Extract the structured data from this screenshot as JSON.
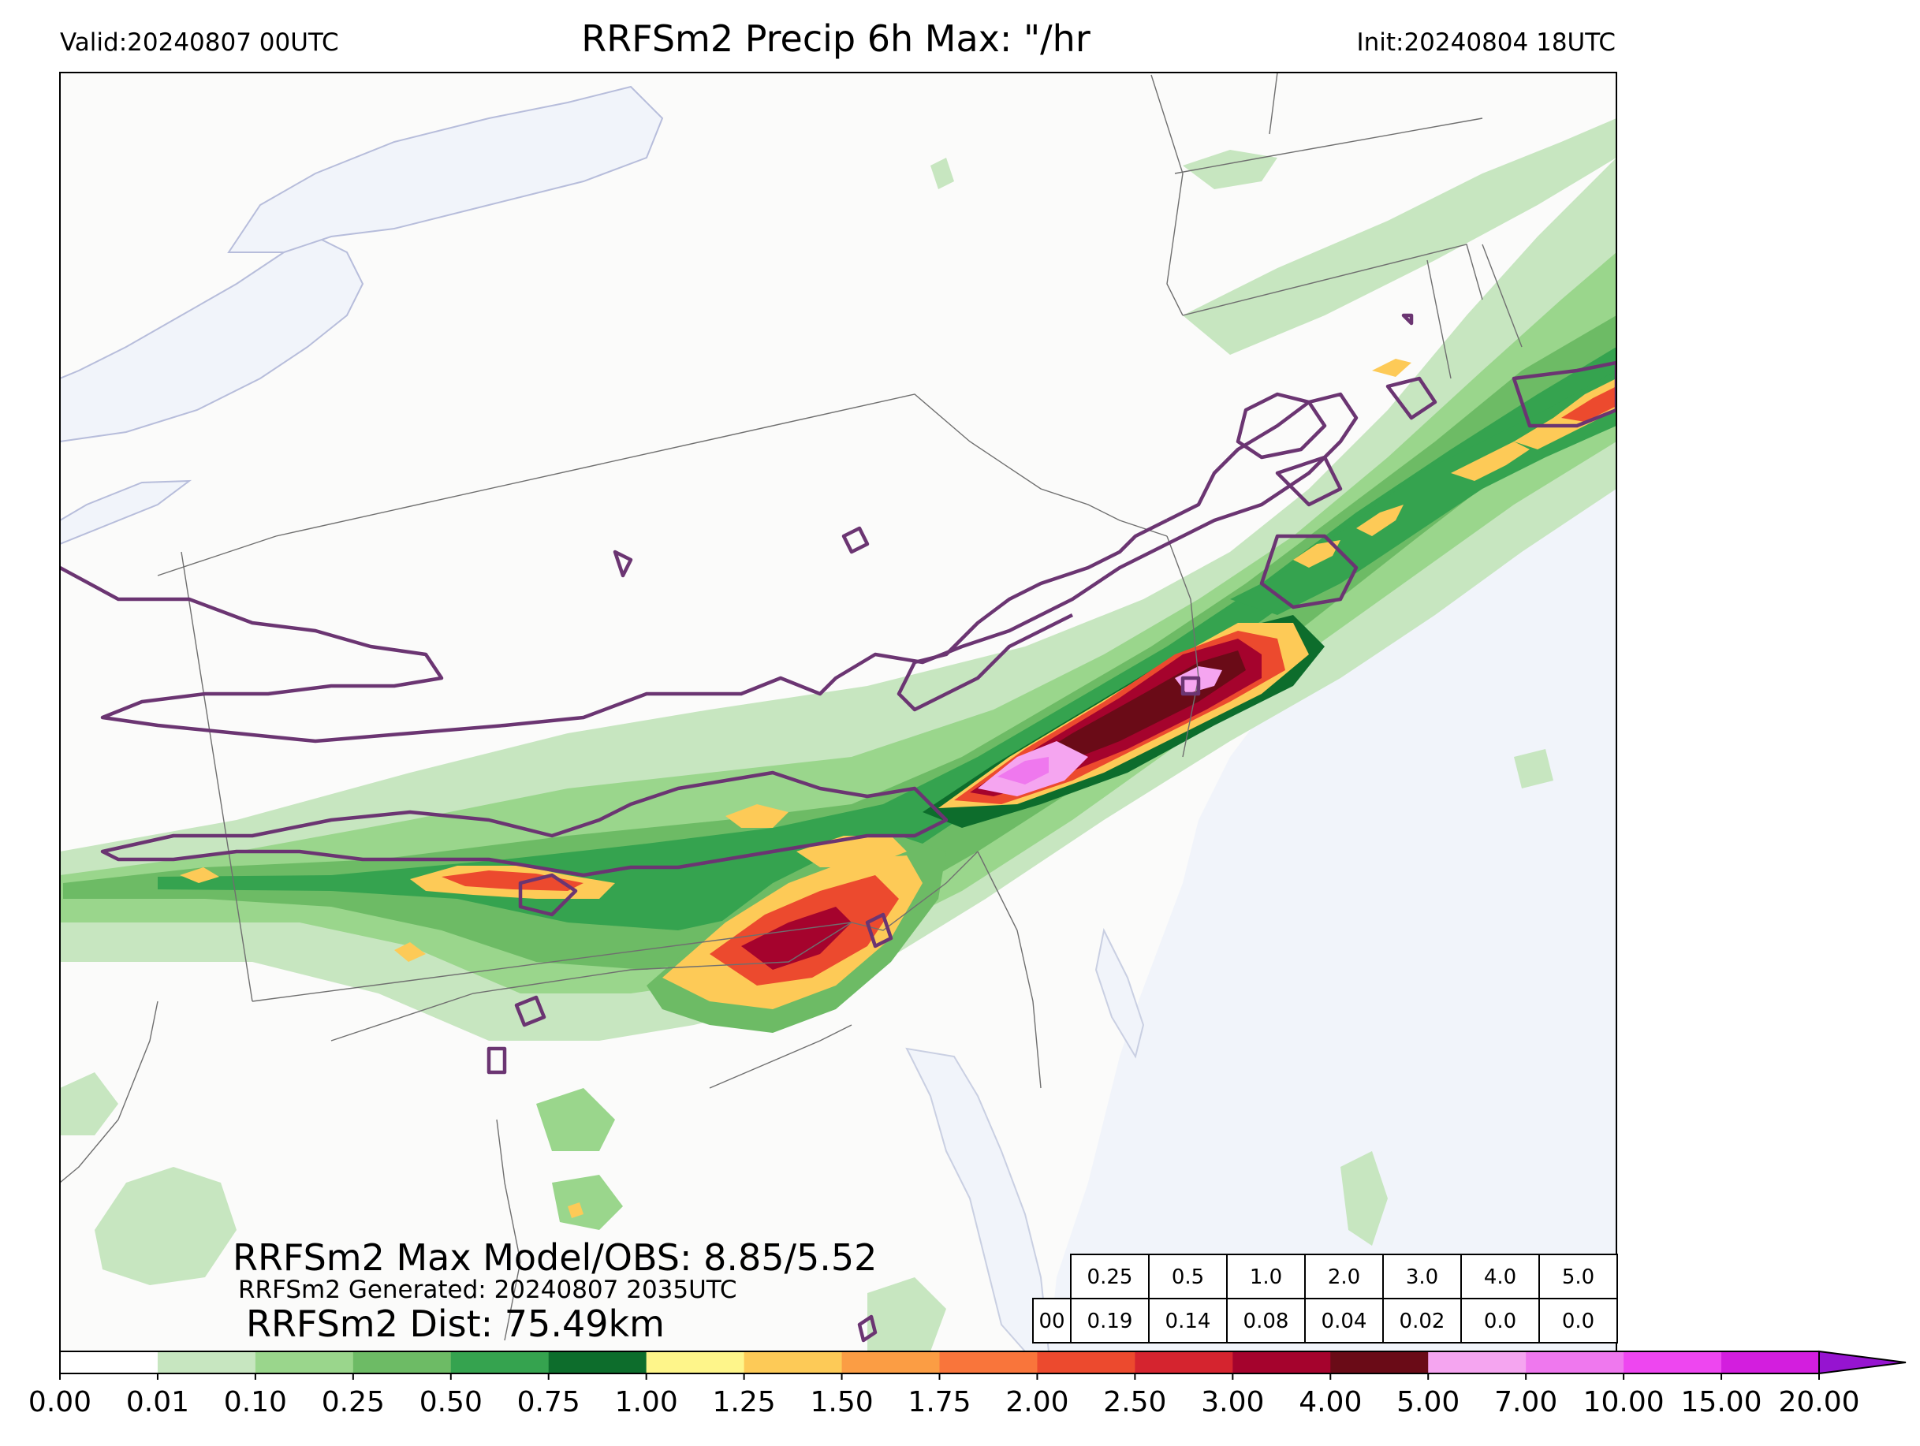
{
  "header": {
    "valid": "Valid:20240807 00UTC",
    "title": "RRFSm2 Precip 6h Max: \"/hr",
    "init": "Init:20240804 18UTC"
  },
  "stats": {
    "max_model_obs": "RRFSm2 Max Model/OBS: 8.85/5.52",
    "generated": "RRFSm2 Generated: 20240807 2035UTC",
    "distance": "RRFSm2 Dist: 75.49km"
  },
  "score_table": {
    "thresholds": [
      "0.25",
      "0.5",
      "1.0",
      "2.0",
      "3.0",
      "4.0",
      "5.0"
    ],
    "row_label": "00",
    "scores": [
      "0.19",
      "0.14",
      "0.08",
      "0.04",
      "0.02",
      "0.0",
      "0.0"
    ]
  },
  "colorbar": {
    "labels": [
      "0.00",
      "0.01",
      "0.10",
      "0.25",
      "0.50",
      "0.75",
      "1.00",
      "1.25",
      "1.50",
      "1.75",
      "2.00",
      "2.50",
      "3.00",
      "4.00",
      "5.00",
      "7.00",
      "10.00",
      "15.00",
      "20.00"
    ],
    "colors": [
      "#ffffff",
      "#c7e6c0",
      "#9ad68c",
      "#6dbb65",
      "#35a34f",
      "#0d6d2c",
      "#fef58a",
      "#fdca57",
      "#fb9d44",
      "#f9753b",
      "#ec4a2e",
      "#d5242f",
      "#a5032d",
      "#6a0b17",
      "#f5a5f0",
      "#ef78ee",
      "#ee46f0",
      "#d31ede",
      "#9614d0"
    ],
    "extend_color": "#5a0b9e"
  },
  "map_colors": {
    "land": "#fbfbfa",
    "water": "#f1f4fa",
    "lake_edge": "#b7bddb",
    "border": "#6f6f6f",
    "obs_contour": "#6b3572"
  }
}
